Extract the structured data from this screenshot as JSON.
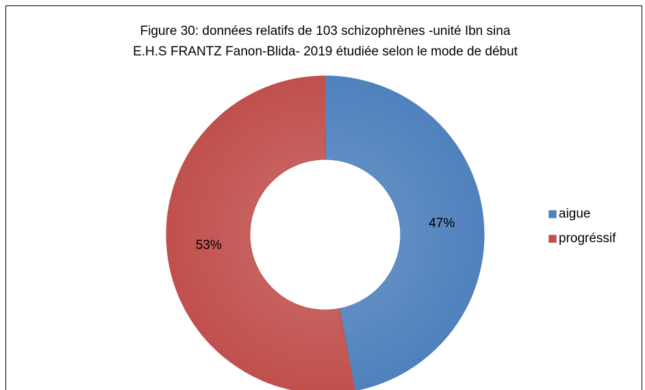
{
  "chart_data": {
    "type": "donut",
    "title": [
      "Figure 30: données relatifs de 103 schizophrènes -unité Ibn sina",
      "E.H.S FRANTZ Fanon-Blida- 2019 étudiée selon le mode de début"
    ],
    "categories": [
      "aigue",
      "progréssif"
    ],
    "values": [
      47,
      53
    ],
    "value_labels": [
      "47%",
      "53%"
    ],
    "colors": [
      "#4f81bd",
      "#c0504d"
    ],
    "legend": "right"
  }
}
